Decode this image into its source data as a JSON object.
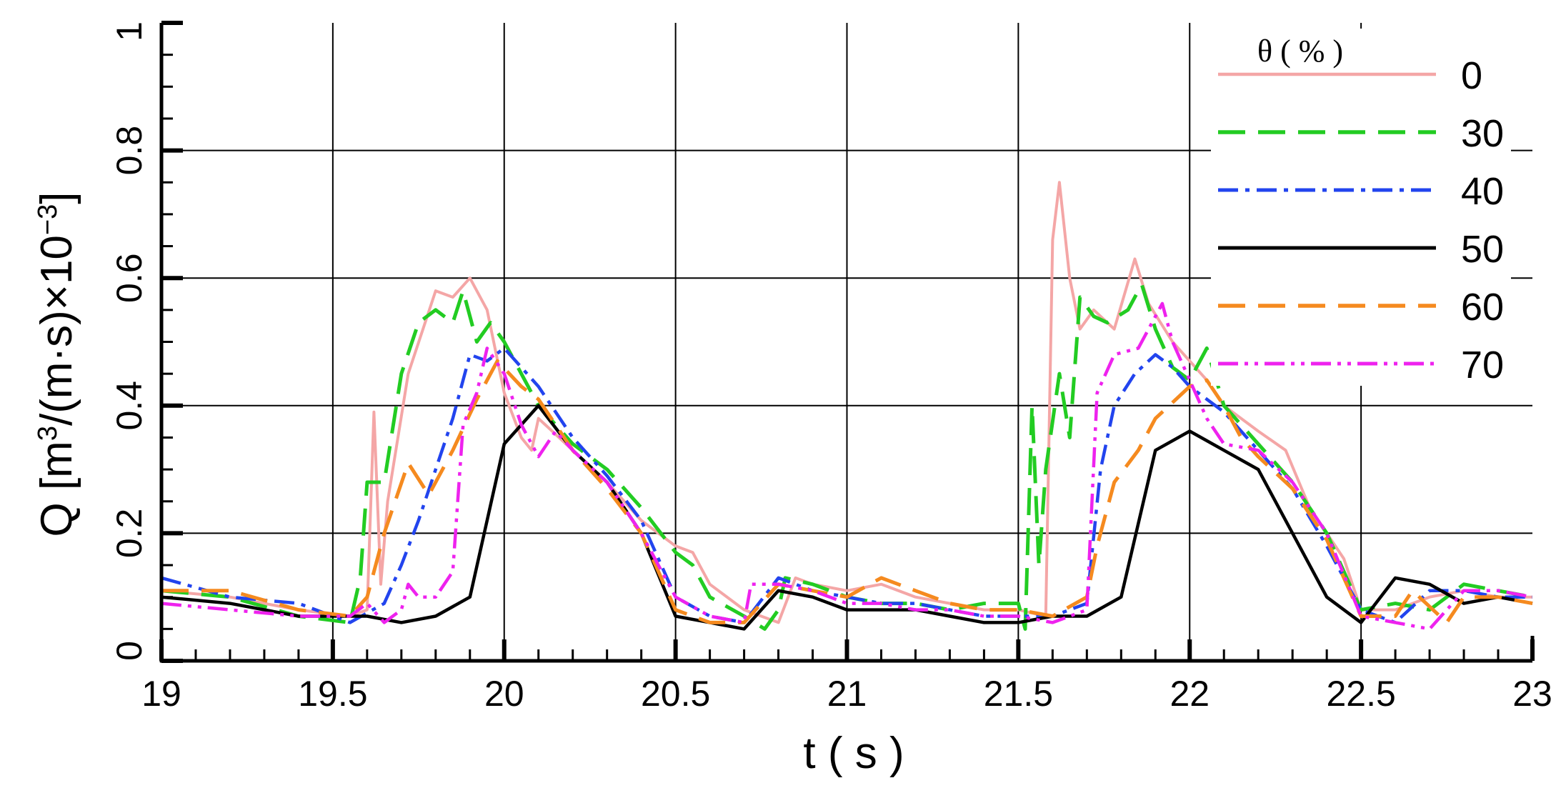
{
  "chart_data": {
    "type": "line",
    "xlabel": "t ( s )",
    "ylabel_main": "Q [m",
    "ylabel_sup1": "3",
    "ylabel_mid": "/(m·s)×10",
    "ylabel_sup2": "−3",
    "ylabel_end": "]",
    "xlim": [
      19,
      23
    ],
    "ylim": [
      0,
      1
    ],
    "x_ticks": [
      "19",
      "19.5",
      "20",
      "20.5",
      "21",
      "21.5",
      "22",
      "22.5",
      "23"
    ],
    "y_ticks": [
      "0",
      "0.2",
      "0.4",
      "0.6",
      "0.8",
      "1"
    ],
    "grid": true,
    "legend_title": "θ ( % )",
    "legend_position": "top-right",
    "series": [
      {
        "name": "0",
        "color": "#f4a6a6",
        "dash": "solid-thin",
        "points": [
          [
            19.0,
            0.11
          ],
          [
            19.2,
            0.1
          ],
          [
            19.4,
            0.08
          ],
          [
            19.55,
            0.07
          ],
          [
            19.6,
            0.08
          ],
          [
            19.62,
            0.39
          ],
          [
            19.64,
            0.12
          ],
          [
            19.66,
            0.25
          ],
          [
            19.72,
            0.45
          ],
          [
            19.8,
            0.58
          ],
          [
            19.85,
            0.57
          ],
          [
            19.9,
            0.6
          ],
          [
            19.95,
            0.55
          ],
          [
            20.0,
            0.42
          ],
          [
            20.05,
            0.35
          ],
          [
            20.08,
            0.33
          ],
          [
            20.1,
            0.38
          ],
          [
            20.2,
            0.33
          ],
          [
            20.3,
            0.28
          ],
          [
            20.4,
            0.22
          ],
          [
            20.5,
            0.18
          ],
          [
            20.55,
            0.17
          ],
          [
            20.6,
            0.12
          ],
          [
            20.7,
            0.08
          ],
          [
            20.8,
            0.06
          ],
          [
            20.85,
            0.13
          ],
          [
            20.9,
            0.12
          ],
          [
            21.0,
            0.11
          ],
          [
            21.1,
            0.12
          ],
          [
            21.2,
            0.1
          ],
          [
            21.3,
            0.09
          ],
          [
            21.4,
            0.08
          ],
          [
            21.5,
            0.08
          ],
          [
            21.58,
            0.07
          ],
          [
            21.6,
            0.66
          ],
          [
            21.62,
            0.75
          ],
          [
            21.65,
            0.6
          ],
          [
            21.68,
            0.52
          ],
          [
            21.72,
            0.55
          ],
          [
            21.78,
            0.52
          ],
          [
            21.84,
            0.63
          ],
          [
            21.88,
            0.56
          ],
          [
            21.95,
            0.5
          ],
          [
            22.0,
            0.47
          ],
          [
            22.05,
            0.44
          ],
          [
            22.1,
            0.4
          ],
          [
            22.2,
            0.36
          ],
          [
            22.28,
            0.33
          ],
          [
            22.35,
            0.24
          ],
          [
            22.45,
            0.16
          ],
          [
            22.5,
            0.08
          ],
          [
            22.6,
            0.08
          ],
          [
            22.7,
            0.1
          ],
          [
            22.8,
            0.11
          ],
          [
            22.9,
            0.1
          ],
          [
            23.0,
            0.1
          ]
        ]
      },
      {
        "name": "30",
        "color": "#22cc22",
        "dash": "long-dash",
        "points": [
          [
            19.0,
            0.11
          ],
          [
            19.2,
            0.1
          ],
          [
            19.4,
            0.07
          ],
          [
            19.55,
            0.06
          ],
          [
            19.58,
            0.13
          ],
          [
            19.6,
            0.28
          ],
          [
            19.65,
            0.28
          ],
          [
            19.7,
            0.45
          ],
          [
            19.75,
            0.53
          ],
          [
            19.8,
            0.55
          ],
          [
            19.85,
            0.53
          ],
          [
            19.88,
            0.58
          ],
          [
            19.92,
            0.5
          ],
          [
            19.96,
            0.53
          ],
          [
            20.0,
            0.5
          ],
          [
            20.1,
            0.4
          ],
          [
            20.2,
            0.34
          ],
          [
            20.3,
            0.3
          ],
          [
            20.4,
            0.24
          ],
          [
            20.5,
            0.17
          ],
          [
            20.55,
            0.15
          ],
          [
            20.6,
            0.1
          ],
          [
            20.7,
            0.07
          ],
          [
            20.76,
            0.05
          ],
          [
            20.8,
            0.08
          ],
          [
            20.82,
            0.13
          ],
          [
            20.9,
            0.12
          ],
          [
            21.0,
            0.1
          ],
          [
            21.1,
            0.09
          ],
          [
            21.2,
            0.09
          ],
          [
            21.3,
            0.08
          ],
          [
            21.4,
            0.09
          ],
          [
            21.5,
            0.09
          ],
          [
            21.52,
            0.05
          ],
          [
            21.54,
            0.4
          ],
          [
            21.56,
            0.15
          ],
          [
            21.58,
            0.3
          ],
          [
            21.62,
            0.45
          ],
          [
            21.65,
            0.35
          ],
          [
            21.68,
            0.57
          ],
          [
            21.72,
            0.54
          ],
          [
            21.76,
            0.53
          ],
          [
            21.82,
            0.55
          ],
          [
            21.86,
            0.59
          ],
          [
            21.9,
            0.52
          ],
          [
            21.95,
            0.46
          ],
          [
            22.0,
            0.44
          ],
          [
            22.05,
            0.49
          ],
          [
            22.1,
            0.4
          ],
          [
            22.2,
            0.34
          ],
          [
            22.3,
            0.28
          ],
          [
            22.4,
            0.2
          ],
          [
            22.5,
            0.08
          ],
          [
            22.6,
            0.09
          ],
          [
            22.7,
            0.08
          ],
          [
            22.8,
            0.12
          ],
          [
            22.9,
            0.11
          ],
          [
            23.0,
            0.1
          ]
        ]
      },
      {
        "name": "40",
        "color": "#2244ee",
        "dash": "dash-dot",
        "points": [
          [
            19.0,
            0.13
          ],
          [
            19.2,
            0.1
          ],
          [
            19.4,
            0.09
          ],
          [
            19.55,
            0.06
          ],
          [
            19.65,
            0.09
          ],
          [
            19.7,
            0.15
          ],
          [
            19.75,
            0.22
          ],
          [
            19.8,
            0.3
          ],
          [
            19.85,
            0.38
          ],
          [
            19.9,
            0.48
          ],
          [
            19.95,
            0.47
          ],
          [
            20.0,
            0.49
          ],
          [
            20.1,
            0.43
          ],
          [
            20.2,
            0.35
          ],
          [
            20.3,
            0.29
          ],
          [
            20.4,
            0.22
          ],
          [
            20.5,
            0.1
          ],
          [
            20.6,
            0.07
          ],
          [
            20.7,
            0.06
          ],
          [
            20.8,
            0.13
          ],
          [
            20.9,
            0.11
          ],
          [
            21.0,
            0.1
          ],
          [
            21.1,
            0.09
          ],
          [
            21.2,
            0.09
          ],
          [
            21.3,
            0.08
          ],
          [
            21.4,
            0.07
          ],
          [
            21.5,
            0.07
          ],
          [
            21.6,
            0.07
          ],
          [
            21.7,
            0.09
          ],
          [
            21.74,
            0.3
          ],
          [
            21.78,
            0.4
          ],
          [
            21.84,
            0.45
          ],
          [
            21.9,
            0.48
          ],
          [
            21.95,
            0.46
          ],
          [
            22.0,
            0.43
          ],
          [
            22.1,
            0.39
          ],
          [
            22.2,
            0.33
          ],
          [
            22.3,
            0.27
          ],
          [
            22.4,
            0.18
          ],
          [
            22.5,
            0.08
          ],
          [
            22.6,
            0.06
          ],
          [
            22.7,
            0.11
          ],
          [
            22.8,
            0.11
          ],
          [
            22.9,
            0.1
          ],
          [
            23.0,
            0.1
          ]
        ]
      },
      {
        "name": "50",
        "color": "#000000",
        "dash": "solid",
        "points": [
          [
            19.0,
            0.1
          ],
          [
            19.2,
            0.09
          ],
          [
            19.4,
            0.07
          ],
          [
            19.5,
            0.07
          ],
          [
            19.6,
            0.07
          ],
          [
            19.7,
            0.06
          ],
          [
            19.8,
            0.07
          ],
          [
            19.9,
            0.1
          ],
          [
            20.0,
            0.34
          ],
          [
            20.1,
            0.4
          ],
          [
            20.2,
            0.33
          ],
          [
            20.3,
            0.28
          ],
          [
            20.4,
            0.2
          ],
          [
            20.5,
            0.07
          ],
          [
            20.6,
            0.06
          ],
          [
            20.7,
            0.05
          ],
          [
            20.8,
            0.11
          ],
          [
            20.9,
            0.1
          ],
          [
            21.0,
            0.08
          ],
          [
            21.1,
            0.08
          ],
          [
            21.2,
            0.08
          ],
          [
            21.3,
            0.07
          ],
          [
            21.4,
            0.06
          ],
          [
            21.5,
            0.06
          ],
          [
            21.6,
            0.07
          ],
          [
            21.7,
            0.07
          ],
          [
            21.8,
            0.1
          ],
          [
            21.9,
            0.33
          ],
          [
            22.0,
            0.36
          ],
          [
            22.1,
            0.33
          ],
          [
            22.2,
            0.3
          ],
          [
            22.3,
            0.2
          ],
          [
            22.4,
            0.1
          ],
          [
            22.5,
            0.06
          ],
          [
            22.6,
            0.13
          ],
          [
            22.7,
            0.12
          ],
          [
            22.8,
            0.09
          ],
          [
            22.9,
            0.1
          ],
          [
            23.0,
            0.09
          ]
        ]
      },
      {
        "name": "60",
        "color": "#f58a1f",
        "dash": "long-dash",
        "points": [
          [
            19.0,
            0.11
          ],
          [
            19.2,
            0.11
          ],
          [
            19.4,
            0.08
          ],
          [
            19.55,
            0.07
          ],
          [
            19.6,
            0.1
          ],
          [
            19.65,
            0.2
          ],
          [
            19.72,
            0.31
          ],
          [
            19.78,
            0.26
          ],
          [
            19.85,
            0.33
          ],
          [
            19.92,
            0.41
          ],
          [
            19.98,
            0.47
          ],
          [
            20.05,
            0.43
          ],
          [
            20.1,
            0.41
          ],
          [
            20.2,
            0.33
          ],
          [
            20.3,
            0.27
          ],
          [
            20.4,
            0.2
          ],
          [
            20.5,
            0.08
          ],
          [
            20.6,
            0.06
          ],
          [
            20.7,
            0.06
          ],
          [
            20.8,
            0.12
          ],
          [
            20.9,
            0.11
          ],
          [
            21.0,
            0.1
          ],
          [
            21.1,
            0.13
          ],
          [
            21.2,
            0.11
          ],
          [
            21.3,
            0.09
          ],
          [
            21.4,
            0.08
          ],
          [
            21.5,
            0.08
          ],
          [
            21.6,
            0.07
          ],
          [
            21.7,
            0.1
          ],
          [
            21.73,
            0.18
          ],
          [
            21.78,
            0.28
          ],
          [
            21.85,
            0.33
          ],
          [
            21.9,
            0.38
          ],
          [
            22.0,
            0.43
          ],
          [
            22.05,
            0.44
          ],
          [
            22.1,
            0.4
          ],
          [
            22.15,
            0.35
          ],
          [
            22.2,
            0.32
          ],
          [
            22.3,
            0.27
          ],
          [
            22.4,
            0.19
          ],
          [
            22.5,
            0.07
          ],
          [
            22.6,
            0.07
          ],
          [
            22.65,
            0.11
          ],
          [
            22.75,
            0.06
          ],
          [
            22.8,
            0.1
          ],
          [
            22.9,
            0.1
          ],
          [
            23.0,
            0.09
          ]
        ]
      },
      {
        "name": "70",
        "color": "#ee22ee",
        "dash": "dash-dot-dot",
        "points": [
          [
            19.0,
            0.09
          ],
          [
            19.2,
            0.08
          ],
          [
            19.4,
            0.07
          ],
          [
            19.55,
            0.07
          ],
          [
            19.6,
            0.09
          ],
          [
            19.65,
            0.06
          ],
          [
            19.7,
            0.08
          ],
          [
            19.72,
            0.12
          ],
          [
            19.75,
            0.1
          ],
          [
            19.8,
            0.1
          ],
          [
            19.85,
            0.14
          ],
          [
            19.88,
            0.37
          ],
          [
            19.92,
            0.42
          ],
          [
            19.95,
            0.49
          ],
          [
            20.0,
            0.45
          ],
          [
            20.05,
            0.37
          ],
          [
            20.1,
            0.32
          ],
          [
            20.15,
            0.36
          ],
          [
            20.2,
            0.33
          ],
          [
            20.3,
            0.28
          ],
          [
            20.4,
            0.2
          ],
          [
            20.5,
            0.1
          ],
          [
            20.6,
            0.07
          ],
          [
            20.7,
            0.06
          ],
          [
            20.72,
            0.12
          ],
          [
            20.8,
            0.12
          ],
          [
            20.9,
            0.11
          ],
          [
            21.0,
            0.09
          ],
          [
            21.1,
            0.09
          ],
          [
            21.2,
            0.08
          ],
          [
            21.3,
            0.08
          ],
          [
            21.4,
            0.07
          ],
          [
            21.5,
            0.07
          ],
          [
            21.6,
            0.06
          ],
          [
            21.7,
            0.08
          ],
          [
            21.73,
            0.42
          ],
          [
            21.78,
            0.48
          ],
          [
            21.85,
            0.49
          ],
          [
            21.92,
            0.56
          ],
          [
            21.95,
            0.5
          ],
          [
            22.0,
            0.44
          ],
          [
            22.05,
            0.38
          ],
          [
            22.1,
            0.34
          ],
          [
            22.2,
            0.33
          ],
          [
            22.3,
            0.28
          ],
          [
            22.4,
            0.2
          ],
          [
            22.5,
            0.07
          ],
          [
            22.6,
            0.06
          ],
          [
            22.7,
            0.05
          ],
          [
            22.8,
            0.11
          ],
          [
            22.9,
            0.11
          ],
          [
            23.0,
            0.1
          ]
        ]
      }
    ]
  }
}
